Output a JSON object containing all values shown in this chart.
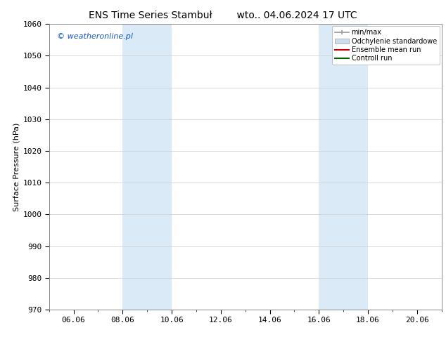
{
  "title_left": "ENS Time Series Stambuł",
  "title_right": "wto.. 04.06.2024 17 UTC",
  "ylabel": "Surface Pressure (hPa)",
  "ylim": [
    970,
    1060
  ],
  "yticks": [
    970,
    980,
    990,
    1000,
    1010,
    1020,
    1030,
    1040,
    1050,
    1060
  ],
  "xtick_labels": [
    "06.06",
    "08.06",
    "10.06",
    "12.06",
    "14.06",
    "16.06",
    "18.06",
    "20.06"
  ],
  "xtick_positions": [
    1,
    3,
    5,
    7,
    9,
    11,
    13,
    15
  ],
  "xlim": [
    0,
    16
  ],
  "shaded_regions": [
    {
      "start": 3.0,
      "end": 5.0
    },
    {
      "start": 11.0,
      "end": 13.0
    }
  ],
  "shade_color": "#daeaf7",
  "watermark_text": "© weatheronline.pl",
  "watermark_color": "#1155cc",
  "legend_entries": [
    {
      "label": "min/max",
      "color": "#999999"
    },
    {
      "label": "Odchylenie standardowe",
      "color": "#ccddef"
    },
    {
      "label": "Ensemble mean run",
      "color": "#cc0000"
    },
    {
      "label": "Controll run",
      "color": "#006600"
    }
  ],
  "bg_color": "#ffffff",
  "grid_color": "#cccccc",
  "title_fontsize": 10,
  "label_fontsize": 8,
  "tick_fontsize": 8,
  "legend_fontsize": 7,
  "watermark_fontsize": 8
}
